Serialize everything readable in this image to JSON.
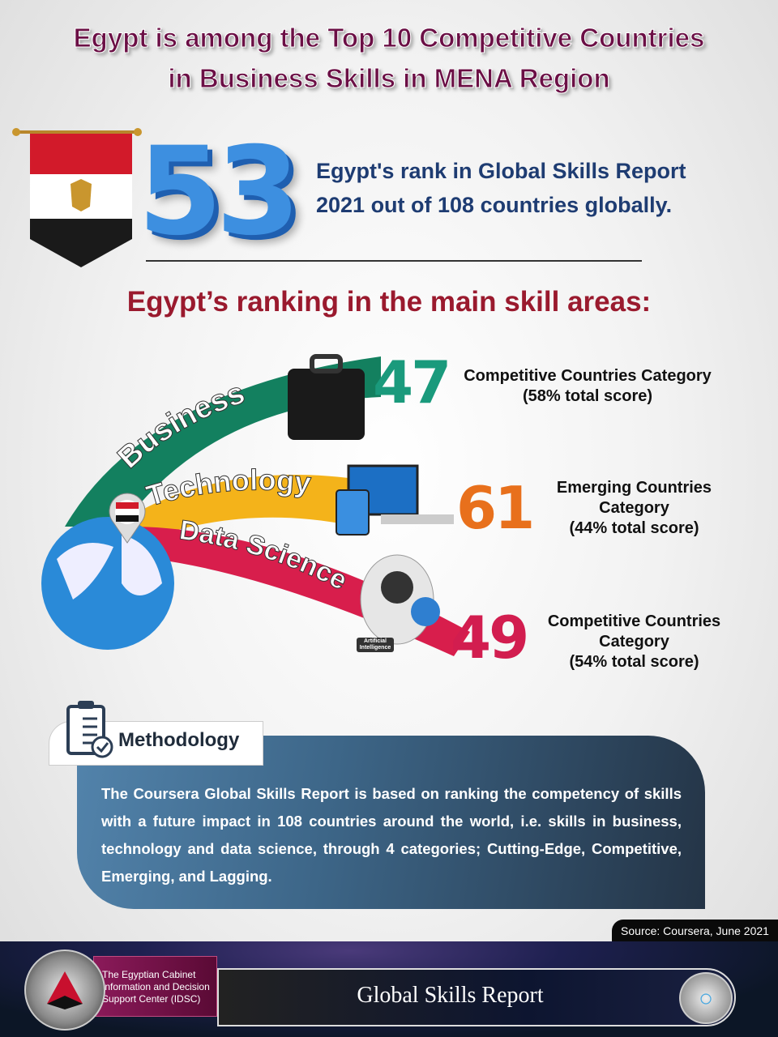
{
  "title": {
    "line1": "Egypt is among the Top 10 Competitive Countries",
    "line2": "in Business Skills in MENA Region"
  },
  "global_rank": {
    "value": "53",
    "line1": "Egypt's rank in Global Skills Report",
    "line2": "2021 out of 108 countries globally."
  },
  "skills_heading": "Egypt’s ranking in the main skill areas:",
  "skills": [
    {
      "label": "Business",
      "rank": "47",
      "category": "Competitive Countries Category",
      "score": "(58% total score)",
      "color": "#1a9a7c",
      "icon": "briefcase-icon"
    },
    {
      "label": "Technology",
      "rank": "61",
      "category_line1": "Emerging Countries",
      "category_line2": "Category",
      "score": "(44% total score)",
      "color": "#e8701c",
      "icon": "devices-icon"
    },
    {
      "label": "Data Science",
      "rank": "49",
      "category_line1": "Competitive Countries",
      "category_line2": "Category",
      "score": "(54% total score)",
      "color": "#d21d4f",
      "icon": "robot-icon",
      "icon_text": "Artificial Intelligence"
    }
  ],
  "methodology": {
    "title": "Methodology",
    "text": "The Coursera Global Skills Report is based on ranking the competency of skills with a future impact in 108 countries around the world, i.e. skills in business, technology and data science, through 4 categories; Cutting-Edge, Competitive, Emerging, and Lagging."
  },
  "source": "Source: Coursera, June 2021",
  "footer": {
    "org_line1": "The Egyptian Cabinet",
    "org_line2": "Information and Decision",
    "org_line3": "Support Center (IDSC)",
    "report_title": "Global Skills Report"
  }
}
